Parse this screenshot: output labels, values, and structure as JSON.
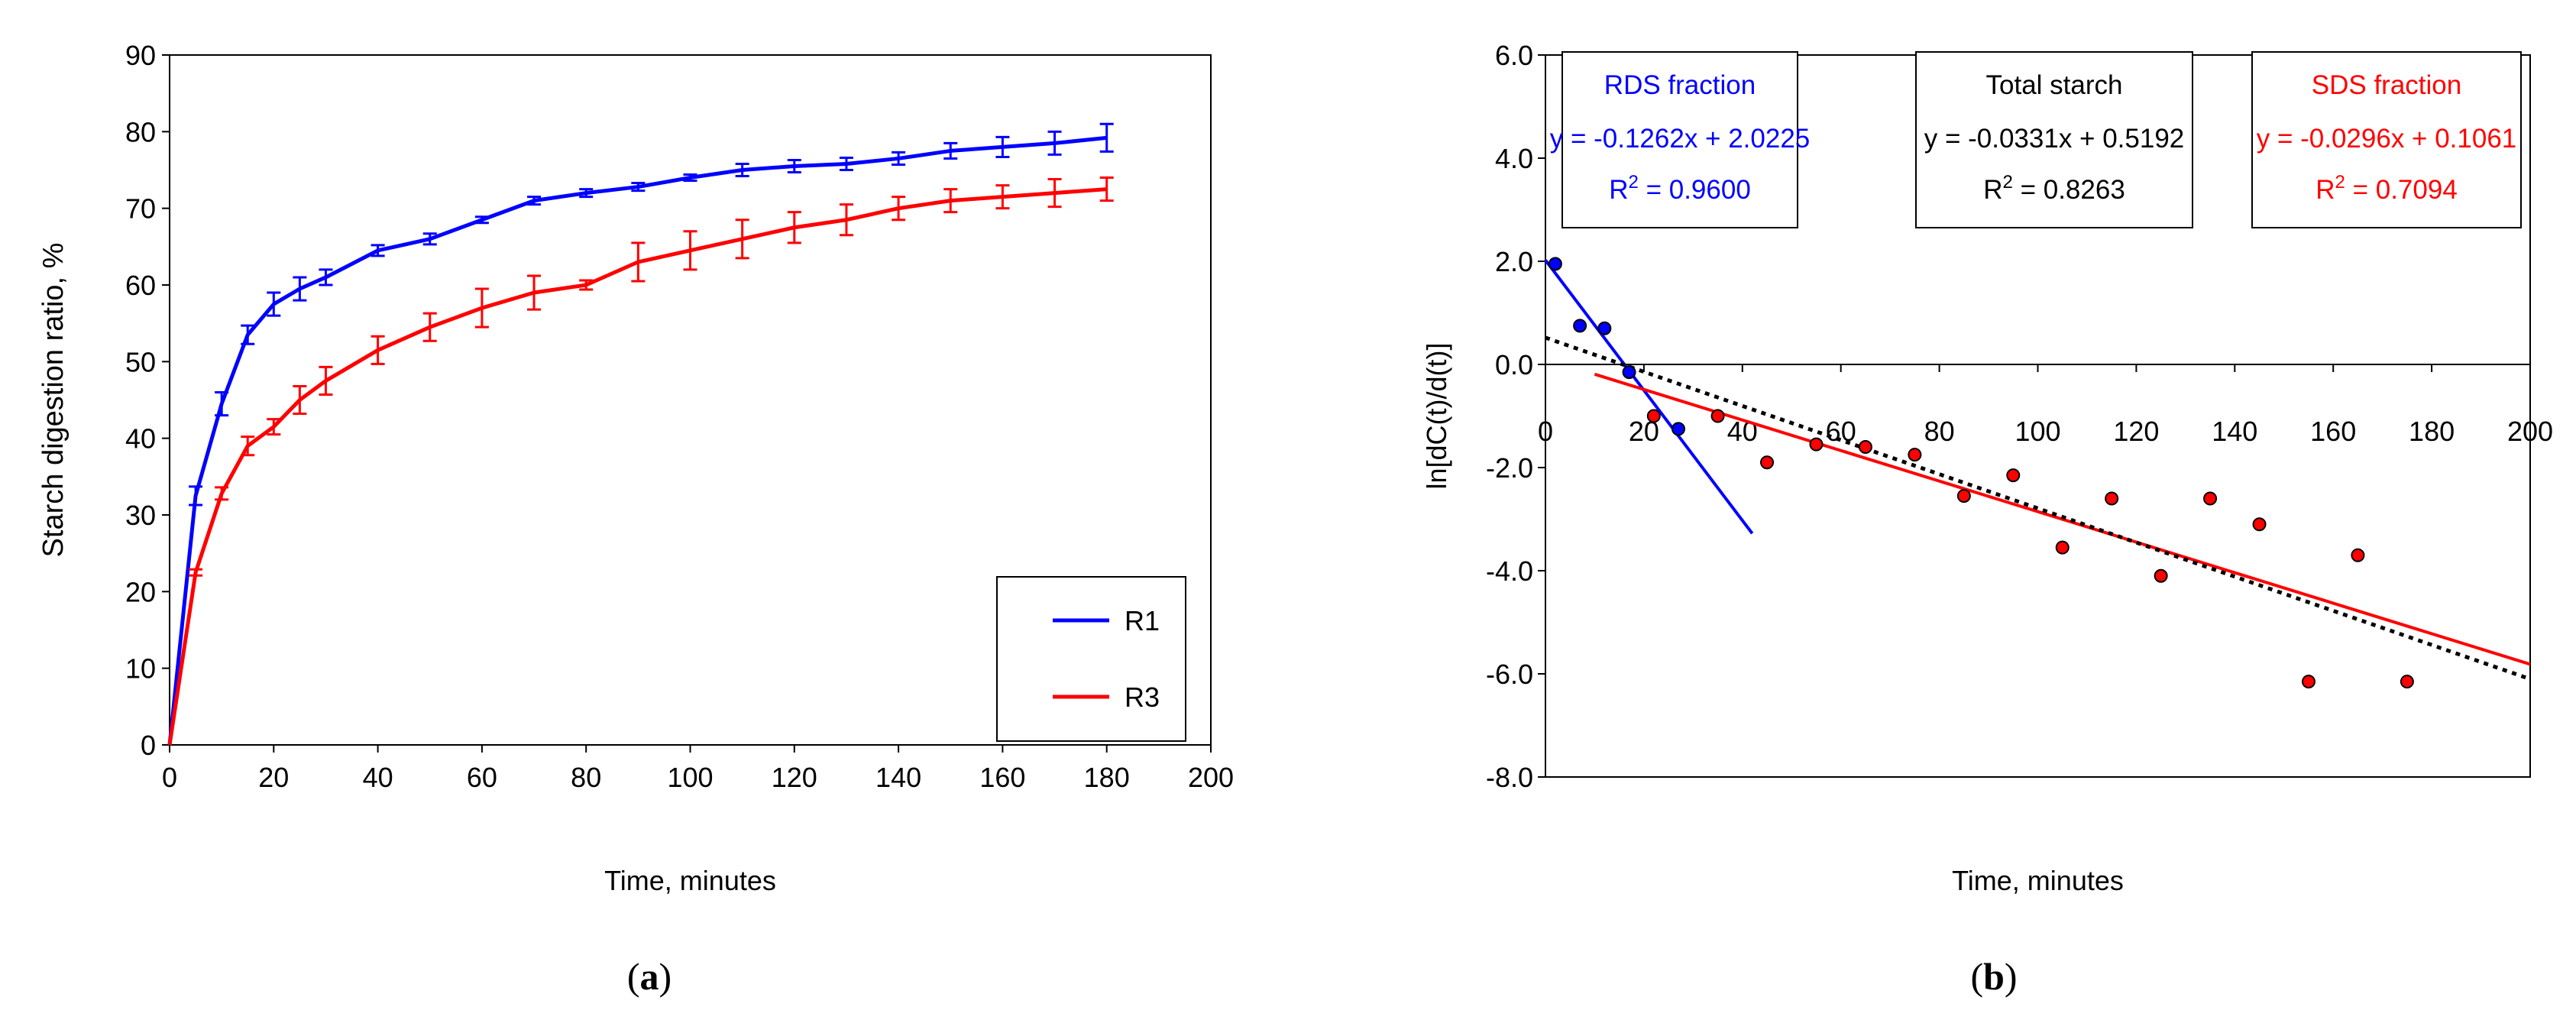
{
  "chart_data": [
    {
      "panel_label": "(a)",
      "panel_letter": "a",
      "type": "line",
      "title": "",
      "xlabel": "Time, minutes",
      "ylabel": "Starch digestion ratio, %",
      "xlim": [
        0,
        200
      ],
      "ylim": [
        0,
        90
      ],
      "x_ticks": [
        "0",
        "20",
        "40",
        "60",
        "80",
        "100",
        "120",
        "140",
        "160",
        "180",
        "200"
      ],
      "y_ticks": [
        "0",
        "10",
        "20",
        "30",
        "40",
        "50",
        "60",
        "70",
        "80",
        "90"
      ],
      "legend_position": "bottom-right",
      "grid": false,
      "series": [
        {
          "name": "R1",
          "color": "#0000ff",
          "x": [
            0,
            5,
            10,
            15,
            20,
            25,
            30,
            40,
            50,
            60,
            70,
            80,
            90,
            100,
            110,
            120,
            130,
            140,
            150,
            160,
            170,
            180
          ],
          "values": [
            0,
            32.5,
            44.5,
            53.5,
            57.5,
            59.5,
            61.0,
            64.5,
            66.0,
            68.5,
            71.0,
            72.0,
            72.8,
            74.0,
            75.0,
            75.5,
            75.8,
            76.5,
            77.5,
            78.0,
            78.5,
            79.2
          ],
          "error": [
            0,
            1.2,
            1.5,
            1.2,
            1.5,
            1.5,
            1.0,
            0.7,
            0.7,
            0.4,
            0.5,
            0.5,
            0.5,
            0.4,
            0.8,
            0.8,
            0.8,
            0.8,
            1.0,
            1.3,
            1.5,
            1.8
          ]
        },
        {
          "name": "R3",
          "color": "#ff0000",
          "x": [
            0,
            5,
            10,
            15,
            20,
            25,
            30,
            40,
            50,
            60,
            70,
            80,
            90,
            100,
            110,
            120,
            130,
            140,
            150,
            160,
            170,
            180
          ],
          "values": [
            0,
            22.5,
            32.8,
            39.0,
            41.5,
            45.0,
            47.5,
            51.5,
            54.5,
            57.0,
            59.0,
            60.0,
            63.0,
            64.5,
            66.0,
            67.5,
            68.5,
            70.0,
            71.0,
            71.5,
            72.0,
            72.5
          ],
          "error": [
            0,
            0.4,
            0.8,
            1.2,
            1.0,
            1.8,
            1.8,
            1.8,
            1.8,
            2.5,
            2.2,
            0.6,
            2.5,
            2.5,
            2.5,
            2.0,
            2.0,
            1.5,
            1.5,
            1.5,
            1.8,
            1.5
          ]
        }
      ]
    },
    {
      "panel_label": "(b)",
      "panel_letter": "b",
      "type": "scatter",
      "title": "",
      "xlabel": "Time, minutes",
      "ylabel": "ln[dC(t)/d(t)]",
      "xlim": [
        0,
        200
      ],
      "ylim": [
        -8,
        6
      ],
      "x_ticks": [
        "0",
        "20",
        "40",
        "60",
        "80",
        "100",
        "120",
        "140",
        "160",
        "180",
        "200"
      ],
      "y_ticks": [
        "-8.0",
        "-6.0",
        "-4.0",
        "-2.0",
        "0.0",
        "2.0",
        "4.0",
        "6.0"
      ],
      "x_axis_at_y": 0,
      "grid": false,
      "points_blue": {
        "name": "RDS fraction data",
        "color": "#0000ff",
        "x": [
          2,
          7,
          12,
          17,
          27
        ],
        "y": [
          1.95,
          0.75,
          0.7,
          -0.15,
          -1.25
        ]
      },
      "points_red": {
        "name": "SDS fraction data",
        "color": "#ff0000",
        "x": [
          22,
          35,
          45,
          55,
          65,
          75,
          85,
          95,
          105,
          115,
          125,
          135,
          145,
          155,
          165,
          175
        ],
        "y": [
          -1.0,
          -1.0,
          -1.9,
          -1.55,
          -1.6,
          -1.75,
          -2.55,
          -2.15,
          -3.55,
          -2.6,
          -4.1,
          -2.6,
          -3.1,
          -6.15,
          -3.7,
          -6.15
        ]
      },
      "fits": [
        {
          "name": "RDS fraction",
          "style": "solid",
          "color": "#0000ff",
          "slope": -0.1262,
          "intercept": 2.0225,
          "x_range": [
            0,
            42
          ]
        },
        {
          "name": "SDS fraction",
          "style": "solid",
          "color": "#ff0000",
          "slope": -0.0296,
          "intercept": 0.1061,
          "x_range": [
            10,
            200
          ]
        },
        {
          "name": "Total starch",
          "style": "dotted",
          "color": "#000000",
          "slope": -0.0331,
          "intercept": 0.5192,
          "x_range": [
            0,
            200
          ]
        }
      ],
      "annotations": [
        {
          "title": "RDS fraction",
          "equation": "y = -0.1262x + 2.0225",
          "r2_prefix": "R",
          "r2_exp": "2",
          "r2_value": " = 0.9600",
          "color": "#0000ff"
        },
        {
          "title": "Total starch",
          "equation": "y = -0.0331x + 0.5192",
          "r2_prefix": "R",
          "r2_exp": "2",
          "r2_value": " = 0.8263",
          "color": "#000000"
        },
        {
          "title": "SDS fraction",
          "equation": "y = -0.0296x + 0.1061",
          "r2_prefix": "R",
          "r2_exp": "2",
          "r2_value": " = 0.7094",
          "color": "#ff0000"
        }
      ]
    }
  ]
}
